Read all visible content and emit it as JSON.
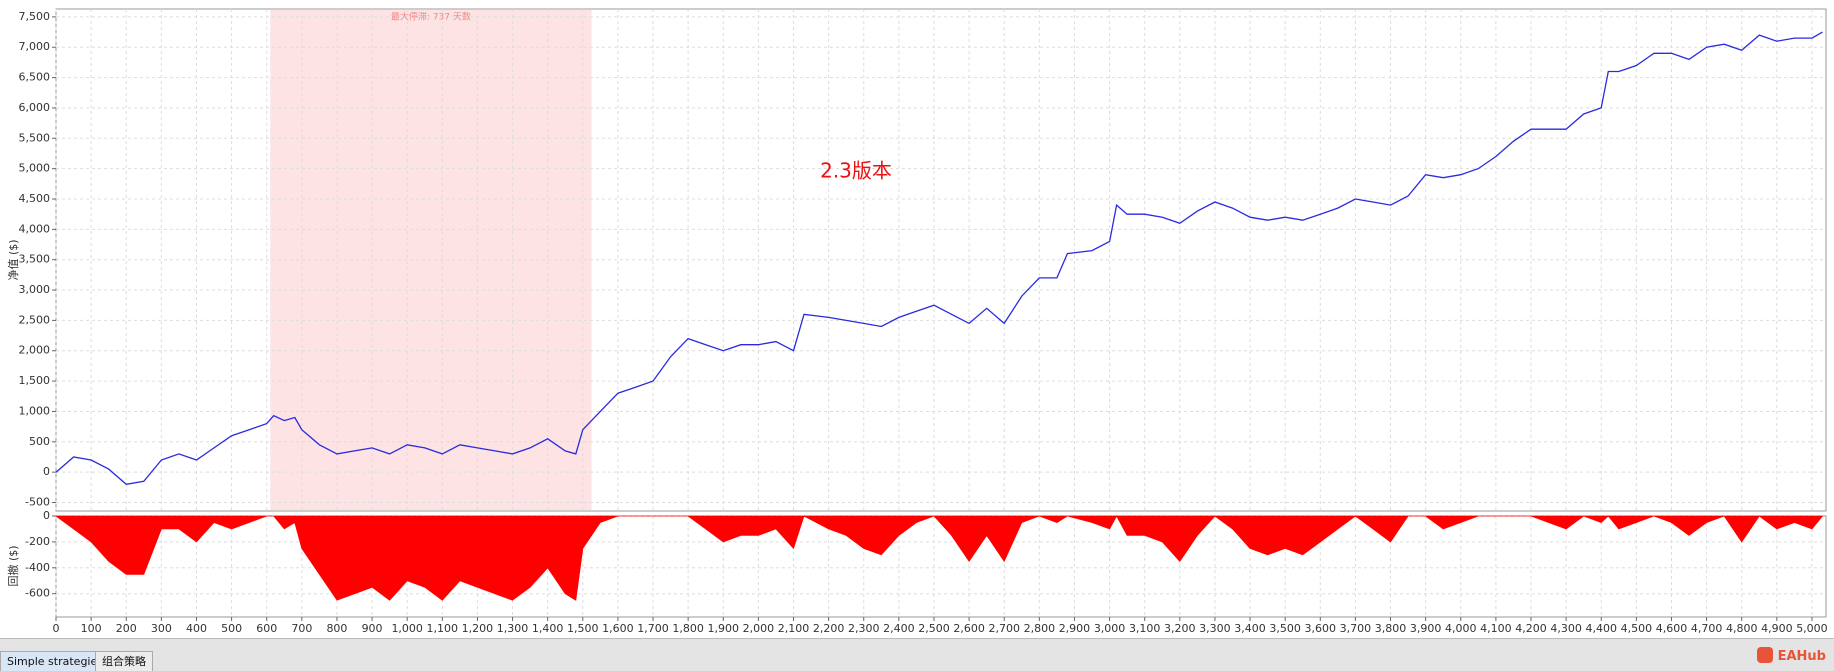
{
  "chart_data": [
    {
      "type": "line",
      "ylabel": "净值 ($)",
      "annotation": "2.3版本",
      "shade": {
        "x": [
          610,
          1525
        ],
        "label": "最大停滞: 737 天数"
      },
      "xlim": [
        0,
        5040
      ],
      "ylim": [
        -640,
        7630
      ],
      "yticks": [
        -500,
        0,
        500,
        {
          "value": 1000,
          "label": "1,000"
        },
        {
          "value": 1500,
          "label": "1,500"
        },
        {
          "value": 2000,
          "label": "2,000"
        },
        {
          "value": 2500,
          "label": "2,500"
        },
        {
          "value": 3000,
          "label": "3,000"
        },
        {
          "value": 3500,
          "label": "3,500"
        },
        {
          "value": 4000,
          "label": "4,000"
        },
        {
          "value": 4500,
          "label": "4,500"
        },
        {
          "value": 5000,
          "label": "5,000"
        },
        {
          "value": 5500,
          "label": "5,500"
        },
        {
          "value": 6000,
          "label": "6,000"
        },
        {
          "value": 6500,
          "label": "6,500"
        },
        {
          "value": 7000,
          "label": "7,000"
        },
        {
          "value": 7500,
          "label": "7,500"
        }
      ],
      "grid": true,
      "x": [
        0,
        50,
        100,
        150,
        200,
        250,
        300,
        350,
        400,
        450,
        500,
        550,
        600,
        620,
        650,
        680,
        700,
        750,
        800,
        850,
        900,
        950,
        1000,
        1050,
        1100,
        1150,
        1200,
        1250,
        1300,
        1350,
        1400,
        1450,
        1480,
        1500,
        1550,
        1600,
        1650,
        1700,
        1750,
        1800,
        1850,
        1900,
        1950,
        2000,
        2050,
        2100,
        2130,
        2200,
        2250,
        2300,
        2350,
        2400,
        2450,
        2500,
        2550,
        2600,
        2650,
        2700,
        2750,
        2800,
        2850,
        2880,
        2950,
        3000,
        3020,
        3050,
        3100,
        3150,
        3200,
        3250,
        3300,
        3350,
        3400,
        3450,
        3500,
        3550,
        3600,
        3650,
        3700,
        3750,
        3800,
        3850,
        3900,
        3950,
        4000,
        4050,
        4100,
        4150,
        4200,
        4250,
        4300,
        4350,
        4400,
        4420,
        4450,
        4500,
        4550,
        4600,
        4650,
        4700,
        4750,
        4800,
        4850,
        4900,
        4950,
        5000,
        5030
      ],
      "series": [
        {
          "color": "#2a2ae0",
          "values": [
            0,
            250,
            200,
            50,
            -200,
            -150,
            200,
            300,
            200,
            400,
            600,
            700,
            800,
            930,
            850,
            900,
            700,
            450,
            300,
            350,
            400,
            300,
            450,
            400,
            300,
            450,
            400,
            350,
            300,
            400,
            550,
            350,
            300,
            700,
            1000,
            1300,
            1400,
            1500,
            1900,
            2200,
            2100,
            2000,
            2100,
            2100,
            2150,
            2000,
            2600,
            2550,
            2500,
            2450,
            2400,
            2550,
            2650,
            2750,
            2600,
            2450,
            2700,
            2450,
            2900,
            3200,
            3200,
            3600,
            3650,
            3800,
            4400,
            4250,
            4250,
            4200,
            4100,
            4300,
            4450,
            4350,
            4200,
            4150,
            4200,
            4150,
            4250,
            4350,
            4500,
            4450,
            4400,
            4550,
            4900,
            4850,
            4900,
            5000,
            5200,
            5450,
            5650,
            5650,
            5650,
            5900,
            6000,
            6600,
            6600,
            6700,
            6900,
            6900,
            6800,
            7000,
            7050,
            6950,
            7200,
            7100,
            7150,
            7150,
            7250
          ]
        }
      ]
    },
    {
      "type": "area",
      "ylabel": "回撤 ($)",
      "xlim": [
        0,
        5040
      ],
      "ylim": [
        -780,
        0
      ],
      "yticks": [
        0,
        -200,
        -400,
        -600
      ],
      "grid": true,
      "xticks": [
        0,
        100,
        200,
        300,
        400,
        500,
        600,
        700,
        800,
        900,
        {
          "value": 1000,
          "label": "1,000"
        },
        {
          "value": 1100,
          "label": "1,100"
        },
        {
          "value": 1200,
          "label": "1,200"
        },
        {
          "value": 1300,
          "label": "1,300"
        },
        {
          "value": 1400,
          "label": "1,400"
        },
        {
          "value": 1500,
          "label": "1,500"
        },
        {
          "value": 1600,
          "label": "1,600"
        },
        {
          "value": 1700,
          "label": "1,700"
        },
        {
          "value": 1800,
          "label": "1,800"
        },
        {
          "value": 1900,
          "label": "1,900"
        },
        {
          "value": 2000,
          "label": "2,000"
        },
        {
          "value": 2100,
          "label": "2,100"
        },
        {
          "value": 2200,
          "label": "2,200"
        },
        {
          "value": 2300,
          "label": "2,300"
        },
        {
          "value": 2400,
          "label": "2,400"
        },
        {
          "value": 2500,
          "label": "2,500"
        },
        {
          "value": 2600,
          "label": "2,600"
        },
        {
          "value": 2700,
          "label": "2,700"
        },
        {
          "value": 2800,
          "label": "2,800"
        },
        {
          "value": 2900,
          "label": "2,900"
        },
        {
          "value": 3000,
          "label": "3,000"
        },
        {
          "value": 3100,
          "label": "3,100"
        },
        {
          "value": 3200,
          "label": "3,200"
        },
        {
          "value": 3300,
          "label": "3,300"
        },
        {
          "value": 3400,
          "label": "3,400"
        },
        {
          "value": 3500,
          "label": "3,500"
        },
        {
          "value": 3600,
          "label": "3,600"
        },
        {
          "value": 3700,
          "label": "3,700"
        },
        {
          "value": 3800,
          "label": "3,800"
        },
        {
          "value": 3900,
          "label": "3,900"
        },
        {
          "value": 4000,
          "label": "4,000"
        },
        {
          "value": 4100,
          "label": "4,100"
        },
        {
          "value": 4200,
          "label": "4,200"
        },
        {
          "value": 4300,
          "label": "4,300"
        },
        {
          "value": 4400,
          "label": "4,400"
        },
        {
          "value": 4500,
          "label": "4,500"
        },
        {
          "value": 4600,
          "label": "4,600"
        },
        {
          "value": 4700,
          "label": "4,700"
        },
        {
          "value": 4800,
          "label": "4,800"
        },
        {
          "value": 4900,
          "label": "4,900"
        },
        {
          "value": 5000,
          "label": "5,000"
        }
      ],
      "x": [
        0,
        50,
        100,
        150,
        200,
        250,
        300,
        350,
        400,
        450,
        500,
        550,
        600,
        620,
        650,
        680,
        700,
        750,
        800,
        850,
        900,
        950,
        1000,
        1050,
        1100,
        1150,
        1200,
        1250,
        1300,
        1350,
        1400,
        1450,
        1480,
        1500,
        1550,
        1600,
        1650,
        1700,
        1750,
        1800,
        1850,
        1900,
        1950,
        2000,
        2050,
        2100,
        2130,
        2200,
        2250,
        2300,
        2350,
        2400,
        2450,
        2500,
        2550,
        2600,
        2650,
        2700,
        2750,
        2800,
        2850,
        2880,
        2950,
        3000,
        3020,
        3050,
        3100,
        3150,
        3200,
        3250,
        3300,
        3350,
        3400,
        3450,
        3500,
        3550,
        3600,
        3650,
        3700,
        3750,
        3800,
        3850,
        3900,
        3950,
        4000,
        4050,
        4100,
        4150,
        4200,
        4250,
        4300,
        4350,
        4400,
        4420,
        4450,
        4500,
        4550,
        4600,
        4650,
        4700,
        4750,
        4800,
        4850,
        4900,
        4950,
        5000,
        5030
      ],
      "series": [
        {
          "color": "#ff0000",
          "values": [
            0,
            -100,
            -200,
            -350,
            -450,
            -450,
            -100,
            -100,
            -200,
            -50,
            -100,
            -50,
            0,
            0,
            -100,
            -50,
            -250,
            -450,
            -650,
            -600,
            -550,
            -650,
            -500,
            -550,
            -650,
            -500,
            -550,
            -600,
            -650,
            -550,
            -400,
            -600,
            -650,
            -250,
            -50,
            0,
            0,
            0,
            0,
            0,
            -100,
            -200,
            -150,
            -150,
            -100,
            -250,
            0,
            -100,
            -150,
            -250,
            -300,
            -150,
            -50,
            0,
            -150,
            -350,
            -150,
            -350,
            -50,
            0,
            -50,
            0,
            -50,
            -100,
            0,
            -150,
            -150,
            -200,
            -350,
            -150,
            0,
            -100,
            -250,
            -300,
            -250,
            -300,
            -200,
            -100,
            0,
            -100,
            -200,
            0,
            0,
            -100,
            -50,
            0,
            0,
            0,
            0,
            -50,
            -100,
            0,
            -50,
            0,
            -100,
            -50,
            0,
            -50,
            -150,
            -50,
            0,
            -200,
            0,
            -100,
            -50,
            -100,
            0
          ]
        }
      ]
    }
  ],
  "ui": {
    "tabs": [
      "Simple strategies",
      "组合策略"
    ],
    "logo": "EAHub"
  }
}
